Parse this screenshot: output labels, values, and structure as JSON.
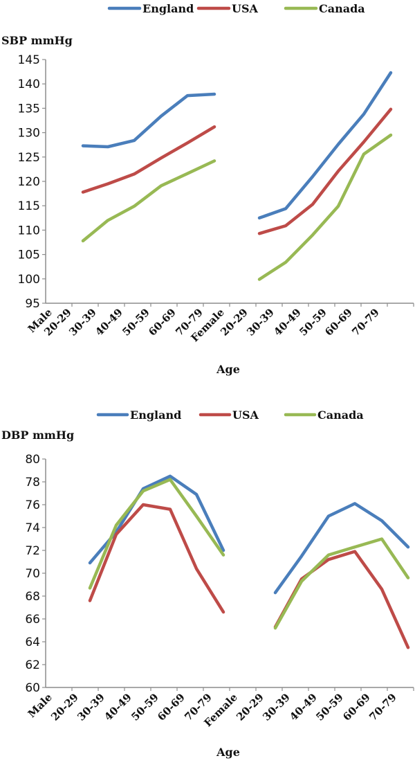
{
  "chart_data": [
    {
      "type": "line",
      "ylabel": "SBP mmHg",
      "xlabel": "Age",
      "ylim": [
        95,
        145
      ],
      "yticks": [
        95,
        100,
        105,
        110,
        115,
        120,
        125,
        130,
        135,
        140,
        145
      ],
      "categories": [
        "Male",
        "20-29",
        "30-39",
        "40-49",
        "50-59",
        "60-69",
        "70-79",
        "Female",
        "20-29",
        "30-39",
        "40-49",
        "50-59",
        "60-69",
        "70-79"
      ],
      "legend": [
        "England",
        "USA",
        "Canada"
      ],
      "series": [
        {
          "name": "England",
          "color": "#4a7ebb",
          "values": [
            null,
            127.3,
            127.1,
            128.4,
            133.4,
            137.6,
            137.9,
            null,
            112.5,
            114.4,
            121.0,
            127.6,
            133.8,
            142.3
          ]
        },
        {
          "name": "USA",
          "color": "#be4b48",
          "values": [
            null,
            117.8,
            119.5,
            121.5,
            124.8,
            127.9,
            131.2,
            null,
            109.3,
            110.9,
            115.3,
            122.1,
            128.1,
            134.8
          ]
        },
        {
          "name": "Canada",
          "color": "#98b954",
          "values": [
            null,
            107.8,
            112.0,
            114.9,
            119.1,
            121.6,
            124.2,
            null,
            99.9,
            103.4,
            109.0,
            114.9,
            125.6,
            129.5
          ]
        }
      ]
    },
    {
      "type": "line",
      "ylabel": "DBP mmHg",
      "xlabel": "Age",
      "ylim": [
        60,
        80
      ],
      "yticks": [
        60,
        62,
        64,
        66,
        68,
        70,
        72,
        74,
        76,
        78,
        80
      ],
      "categories": [
        "Male",
        "20-29",
        "30-39",
        "40-49",
        "50-59",
        "60-69",
        "70-79",
        "Female",
        "20-29",
        "30-39",
        "40-49",
        "50-59",
        "60-69",
        "70-79"
      ],
      "legend": [
        "England",
        "USA",
        "Canada"
      ],
      "series": [
        {
          "name": "England",
          "color": "#4a7ebb",
          "values": [
            null,
            70.9,
            73.6,
            77.4,
            78.5,
            76.9,
            72.0,
            null,
            68.3,
            71.5,
            75.0,
            76.1,
            74.6,
            72.3
          ]
        },
        {
          "name": "USA",
          "color": "#be4b48",
          "values": [
            null,
            67.6,
            73.4,
            76.0,
            75.6,
            70.4,
            66.6,
            null,
            65.3,
            69.5,
            71.2,
            71.9,
            68.6,
            63.5
          ]
        },
        {
          "name": "Canada",
          "color": "#98b954",
          "values": [
            null,
            68.7,
            74.2,
            77.2,
            78.2,
            75.0,
            71.6,
            null,
            65.2,
            69.3,
            71.6,
            72.3,
            73.0,
            69.6
          ]
        }
      ]
    }
  ]
}
